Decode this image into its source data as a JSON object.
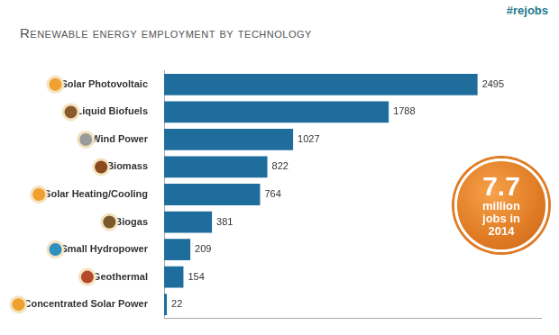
{
  "chart_data": {
    "type": "bar",
    "orientation": "horizontal",
    "title": "Renewable energy employment by technology",
    "annotations": [
      "#rejobs",
      "7.7 million jobs in 2014"
    ],
    "categories": [
      "Solar Photovoltaic",
      "Liquid Biofuels",
      "Wind Power",
      "Biomass",
      "Solar Heating/Cooling",
      "Biogas",
      "Small Hydropower",
      "Geothermal",
      "Concentrated Solar Power"
    ],
    "values": [
      2495,
      1788,
      1027,
      822,
      764,
      381,
      209,
      154,
      22
    ],
    "color": "#1f6d9c",
    "xlim": [
      0,
      3000
    ],
    "grid": false,
    "data_labels": true,
    "tick_labels": "y"
  }
}
